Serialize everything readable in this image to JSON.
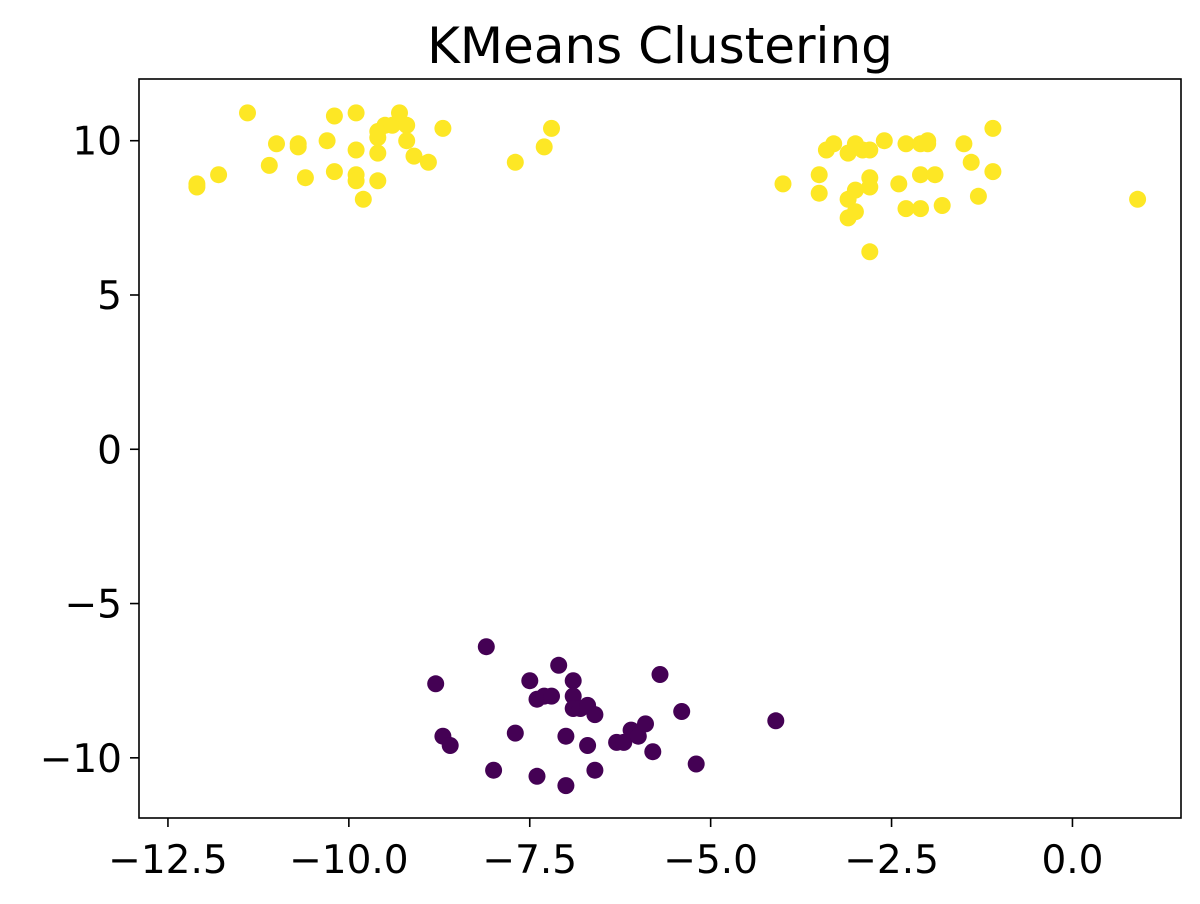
{
  "chart_data": {
    "type": "scatter",
    "title": "KMeans Clustering",
    "xlabel": "",
    "ylabel": "",
    "xlim": [
      -12.9,
      1.5
    ],
    "ylim": [
      -11.95,
      12.0
    ],
    "x_ticks": [
      -12.5,
      -10.0,
      -7.5,
      -5.0,
      -2.5,
      0.0
    ],
    "x_tick_labels": [
      "−12.5",
      "−10.0",
      "−7.5",
      "−5.0",
      "−2.5",
      "0.0"
    ],
    "y_ticks": [
      -10,
      -5,
      0,
      5,
      10
    ],
    "y_tick_labels": [
      "−10",
      "−5",
      "0",
      "5",
      "10"
    ],
    "grid": false,
    "legend": "none",
    "cluster_colors": [
      "#440154",
      "#fde725"
    ],
    "points": [
      [
        -11.4,
        10.9,
        1
      ],
      [
        -11.0,
        9.9,
        1
      ],
      [
        -10.7,
        9.8,
        1
      ],
      [
        -10.7,
        9.9,
        1
      ],
      [
        -10.3,
        10.0,
        1
      ],
      [
        -10.2,
        10.8,
        1
      ],
      [
        -9.9,
        10.9,
        1
      ],
      [
        -9.9,
        9.7,
        1
      ],
      [
        -9.6,
        10.1,
        1
      ],
      [
        -9.6,
        10.3,
        1
      ],
      [
        -9.5,
        10.5,
        1
      ],
      [
        -9.4,
        10.5,
        1
      ],
      [
        -9.3,
        10.9,
        1
      ],
      [
        -9.2,
        10.5,
        1
      ],
      [
        -9.2,
        10.0,
        1
      ],
      [
        -9.1,
        9.5,
        1
      ],
      [
        -9.6,
        9.6,
        1
      ],
      [
        -8.7,
        10.4,
        1
      ],
      [
        -8.9,
        9.3,
        1
      ],
      [
        -11.1,
        9.2,
        1
      ],
      [
        -10.6,
        8.8,
        1
      ],
      [
        -10.2,
        9.0,
        1
      ],
      [
        -9.9,
        8.9,
        1
      ],
      [
        -9.9,
        8.7,
        1
      ],
      [
        -9.6,
        8.7,
        1
      ],
      [
        -9.8,
        8.1,
        1
      ],
      [
        -11.8,
        8.9,
        1
      ],
      [
        -12.1,
        8.6,
        1
      ],
      [
        -12.1,
        8.5,
        1
      ],
      [
        -7.7,
        9.3,
        1
      ],
      [
        -7.3,
        9.8,
        1
      ],
      [
        -7.2,
        10.4,
        1
      ],
      [
        -3.3,
        9.9,
        1
      ],
      [
        -3.4,
        9.7,
        1
      ],
      [
        -3.1,
        9.6,
        1
      ],
      [
        -3.0,
        9.9,
        1
      ],
      [
        -2.9,
        9.7,
        1
      ],
      [
        -2.8,
        9.7,
        1
      ],
      [
        -2.6,
        10.0,
        1
      ],
      [
        -2.3,
        9.9,
        1
      ],
      [
        -2.1,
        9.9,
        1
      ],
      [
        -2.0,
        10.0,
        1
      ],
      [
        -2.0,
        9.9,
        1
      ],
      [
        -1.5,
        9.9,
        1
      ],
      [
        -1.1,
        10.4,
        1
      ],
      [
        -1.4,
        9.3,
        1
      ],
      [
        -1.1,
        9.0,
        1
      ],
      [
        -2.1,
        8.9,
        1
      ],
      [
        -1.9,
        8.9,
        1
      ],
      [
        -2.4,
        8.6,
        1
      ],
      [
        -2.8,
        8.8,
        1
      ],
      [
        -2.8,
        8.5,
        1
      ],
      [
        -3.0,
        8.4,
        1
      ],
      [
        -3.5,
        8.9,
        1
      ],
      [
        -3.5,
        8.3,
        1
      ],
      [
        -3.1,
        8.1,
        1
      ],
      [
        -3.0,
        7.7,
        1
      ],
      [
        -3.1,
        7.5,
        1
      ],
      [
        -2.3,
        7.8,
        1
      ],
      [
        -2.1,
        7.8,
        1
      ],
      [
        -1.8,
        7.9,
        1
      ],
      [
        -1.3,
        8.2,
        1
      ],
      [
        -4.0,
        8.6,
        1
      ],
      [
        -2.8,
        6.4,
        1
      ],
      [
        0.9,
        8.1,
        1
      ],
      [
        -8.1,
        -6.4,
        0
      ],
      [
        -8.8,
        -7.6,
        0
      ],
      [
        -7.5,
        -7.5,
        0
      ],
      [
        -7.1,
        -7.0,
        0
      ],
      [
        -6.9,
        -7.5,
        0
      ],
      [
        -5.7,
        -7.3,
        0
      ],
      [
        -7.4,
        -8.1,
        0
      ],
      [
        -7.3,
        -8.0,
        0
      ],
      [
        -7.2,
        -8.0,
        0
      ],
      [
        -6.9,
        -8.0,
        0
      ],
      [
        -6.9,
        -8.4,
        0
      ],
      [
        -6.8,
        -8.4,
        0
      ],
      [
        -6.7,
        -8.3,
        0
      ],
      [
        -6.6,
        -8.6,
        0
      ],
      [
        -5.4,
        -8.5,
        0
      ],
      [
        -4.1,
        -8.8,
        0
      ],
      [
        -8.7,
        -9.3,
        0
      ],
      [
        -8.6,
        -9.6,
        0
      ],
      [
        -7.7,
        -9.2,
        0
      ],
      [
        -7.0,
        -9.3,
        0
      ],
      [
        -6.7,
        -9.6,
        0
      ],
      [
        -6.3,
        -9.5,
        0
      ],
      [
        -6.2,
        -9.5,
        0
      ],
      [
        -6.1,
        -9.1,
        0
      ],
      [
        -6.0,
        -9.3,
        0
      ],
      [
        -5.9,
        -8.9,
        0
      ],
      [
        -5.8,
        -9.8,
        0
      ],
      [
        -5.2,
        -10.2,
        0
      ],
      [
        -8.0,
        -10.4,
        0
      ],
      [
        -7.4,
        -10.6,
        0
      ],
      [
        -7.0,
        -10.9,
        0
      ],
      [
        -6.6,
        -10.4,
        0
      ]
    ]
  }
}
